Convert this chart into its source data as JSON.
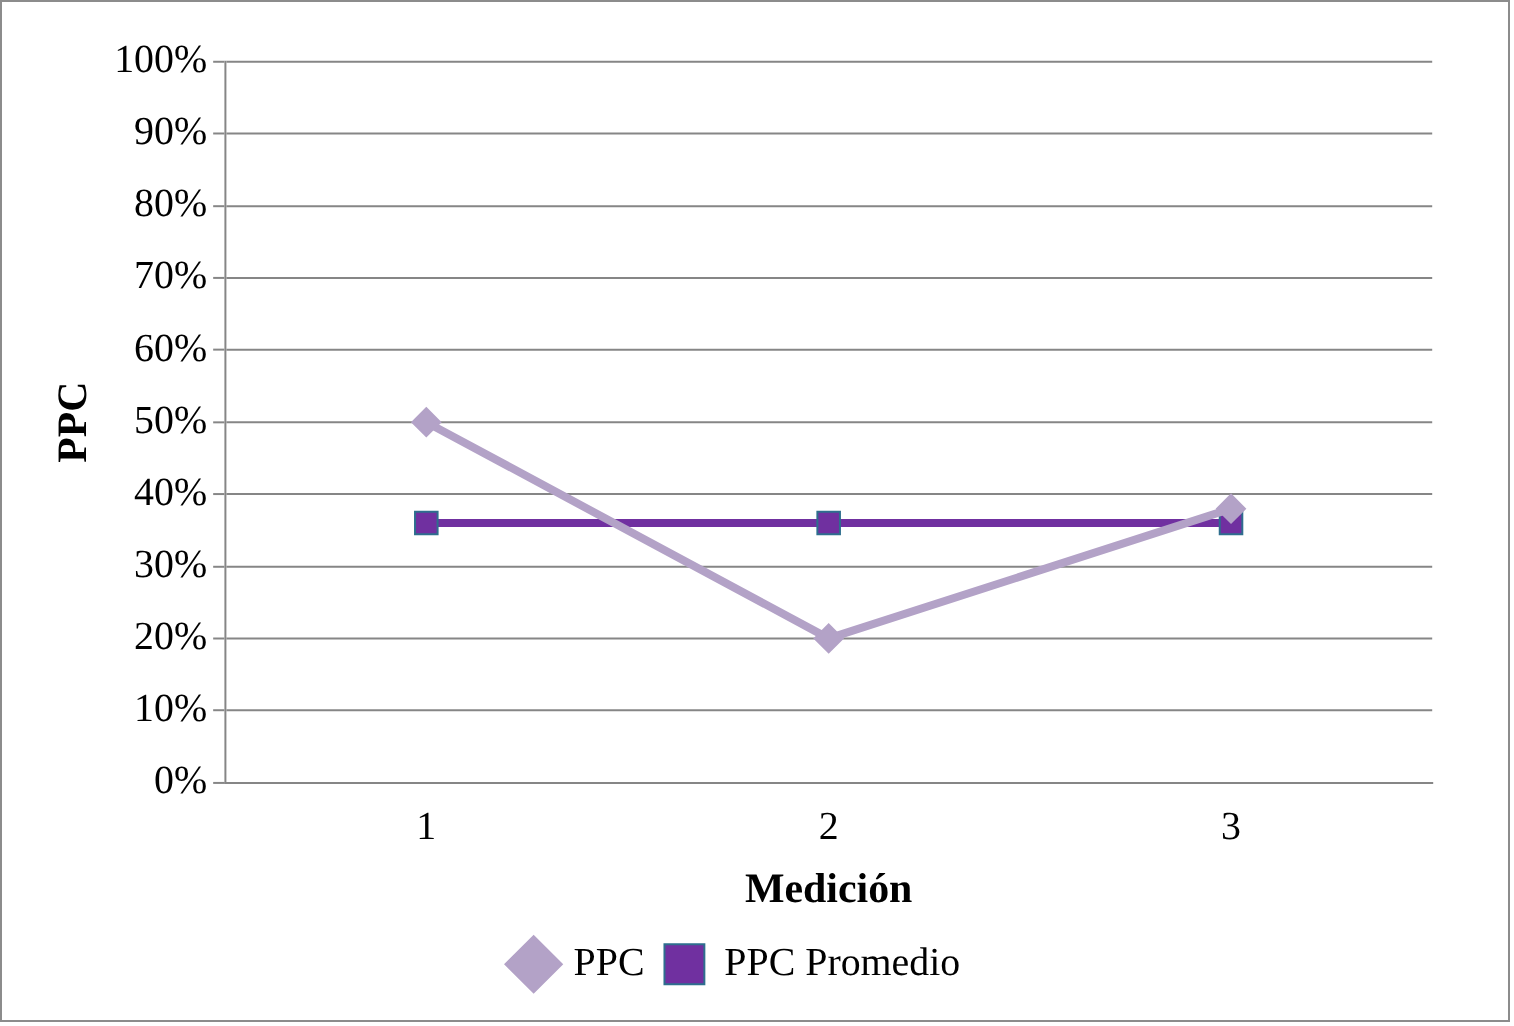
{
  "chart_data": {
    "type": "line",
    "xlabel": "Medición",
    "ylabel": "PPC",
    "categories": [
      "1",
      "2",
      "3"
    ],
    "series": [
      {
        "name": "PPC",
        "color": "#b3a2c7",
        "values": [
          50,
          20,
          38
        ],
        "marker": "diamond"
      },
      {
        "name": "PPC Promedio",
        "color": "#7030a0",
        "values": [
          36,
          36,
          36
        ],
        "marker": "square"
      }
    ],
    "ylim": [
      0,
      100
    ],
    "yticks": [
      {
        "value": 0,
        "label": "0%"
      },
      {
        "value": 10,
        "label": "10%"
      },
      {
        "value": 20,
        "label": "20%"
      },
      {
        "value": 30,
        "label": "30%"
      },
      {
        "value": 40,
        "label": "40%"
      },
      {
        "value": 50,
        "label": "50%"
      },
      {
        "value": 60,
        "label": "60%"
      },
      {
        "value": 70,
        "label": "70%"
      },
      {
        "value": 80,
        "label": "80%"
      },
      {
        "value": 90,
        "label": "90%"
      },
      {
        "value": 100,
        "label": "100%"
      }
    ],
    "grid": "y",
    "legend": "bottom",
    "line_style": "solid"
  }
}
